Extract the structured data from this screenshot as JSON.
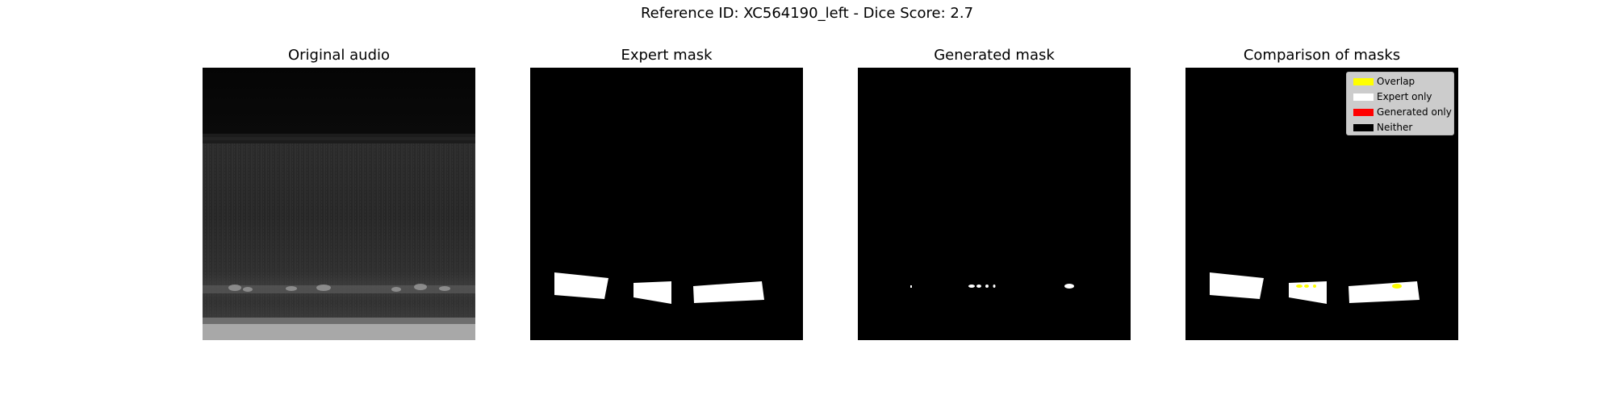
{
  "figure": {
    "title": "Reference ID: XC564190_left - Dice Score: 2.7"
  },
  "panels": [
    {
      "title": "Original audio",
      "icon": "spectrogram-image"
    },
    {
      "title": "Expert mask",
      "icon": "mask-image"
    },
    {
      "title": "Generated mask",
      "icon": "mask-image"
    },
    {
      "title": "Comparison of masks",
      "icon": "comparison-image"
    }
  ],
  "legend": {
    "items": [
      {
        "label": "Overlap",
        "color": "#ffff00"
      },
      {
        "label": "Expert only",
        "color": "#ffffff"
      },
      {
        "label": "Generated only",
        "color": "#ff0000"
      },
      {
        "label": "Neither",
        "color": "#000000"
      }
    ]
  }
}
